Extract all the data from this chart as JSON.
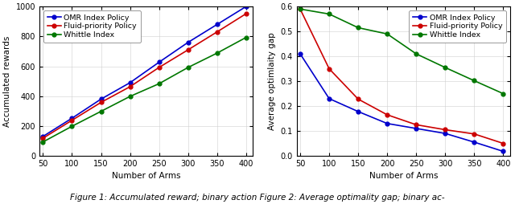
{
  "x": [
    50,
    100,
    150,
    200,
    250,
    300,
    350,
    400
  ],
  "plot1": {
    "omr": [
      130,
      252,
      380,
      490,
      627,
      760,
      880,
      1000
    ],
    "fluid": [
      118,
      238,
      358,
      463,
      592,
      710,
      830,
      952
    ],
    "whittle": [
      93,
      198,
      298,
      398,
      483,
      592,
      688,
      793
    ],
    "ylabel": "Accumulated rewards",
    "xlabel": "Number of Arms",
    "ylim": [
      0,
      1000
    ],
    "yticks": [
      0,
      200,
      400,
      600,
      800,
      1000
    ],
    "xticks": [
      50,
      100,
      150,
      200,
      250,
      300,
      350,
      400
    ]
  },
  "plot2": {
    "omr": [
      0.41,
      0.23,
      0.178,
      0.13,
      0.11,
      0.09,
      0.055,
      0.018
    ],
    "fluid": [
      0.59,
      0.35,
      0.228,
      0.165,
      0.125,
      0.105,
      0.088,
      0.05
    ],
    "whittle": [
      0.59,
      0.57,
      0.515,
      0.49,
      0.41,
      0.355,
      0.302,
      0.25
    ],
    "ylabel": "Average optimlaity gap",
    "xlabel": "Number of Arms",
    "ylim": [
      0,
      0.6
    ],
    "yticks": [
      0.0,
      0.1,
      0.2,
      0.3,
      0.4,
      0.5,
      0.6
    ],
    "xticks": [
      50,
      100,
      150,
      200,
      250,
      300,
      350,
      400
    ]
  },
  "colors": {
    "omr": "#0000cc",
    "fluid": "#cc0000",
    "whittle": "#007700"
  },
  "legend_labels": {
    "omr": "OMR Index Policy",
    "fluid": "Fluid-priority Policy",
    "whittle": "Whittle Index"
  },
  "marker": "o",
  "markersize": 3.5,
  "linewidth": 1.2,
  "tick_fontsize": 7,
  "label_fontsize": 7.5,
  "legend_fontsize": 6.8,
  "caption": "Figure 1: Accumulated reward; binary action Figure 2: Average optimality gap; binary ac-",
  "caption_fontsize": 7.5
}
